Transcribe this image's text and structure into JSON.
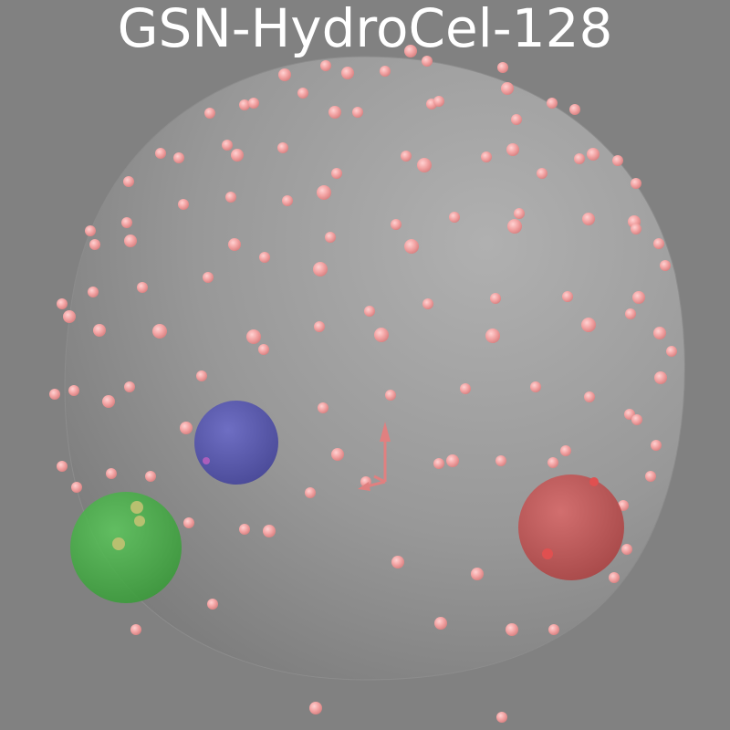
{
  "title": "GSN-HydroCel-128",
  "colors": {
    "background": "#818181",
    "head": "#a8a8a8",
    "electrode": "#f0a0a0",
    "fiducial_nasion": "#5050a8",
    "fiducial_lpa": "#44b044",
    "fiducial_rpa": "#c05050",
    "axes": "#e08080"
  },
  "icons": [
    "sensor-sphere-icon",
    "fiducial-sphere-icon",
    "coordinate-axes-icon"
  ]
}
